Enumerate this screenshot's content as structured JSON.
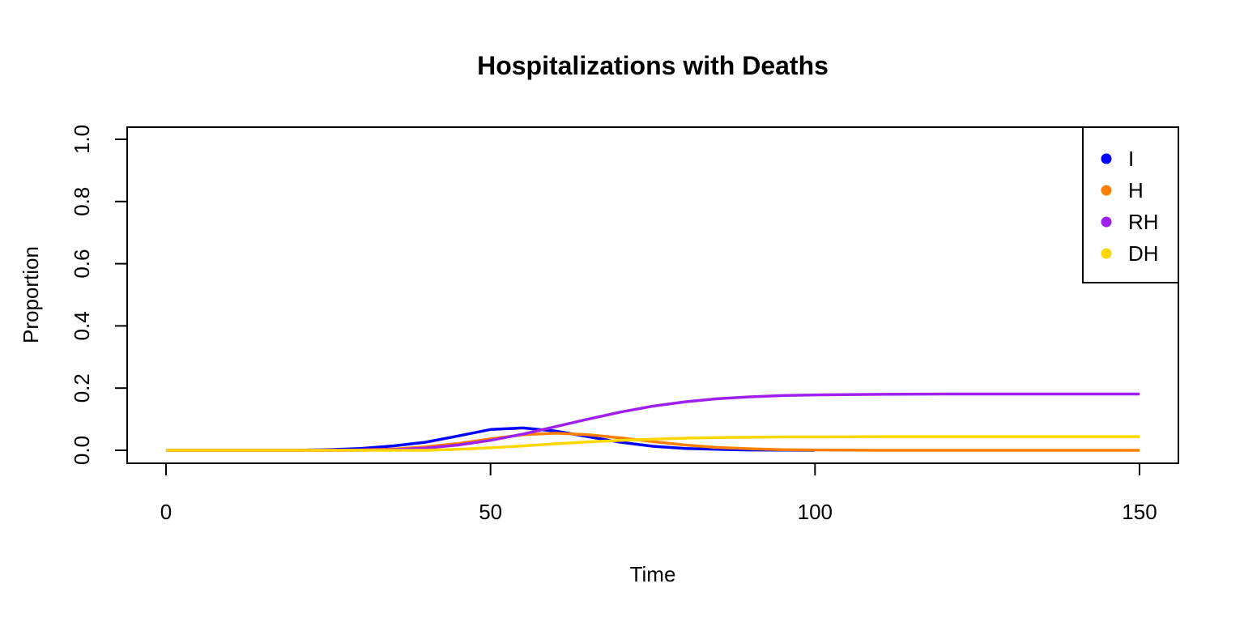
{
  "chart_data": {
    "type": "line",
    "title": "Hospitalizations with Deaths",
    "xlabel": "Time",
    "ylabel": "Proportion",
    "xlim": [
      0,
      150
    ],
    "ylim": [
      0,
      1.0
    ],
    "x_ticks": [
      0,
      50,
      100,
      150
    ],
    "x_tick_labels": [
      "0",
      "50",
      "100",
      "150"
    ],
    "y_ticks": [
      0.0,
      0.2,
      0.4,
      0.6,
      0.8,
      1.0
    ],
    "y_tick_labels": [
      "0.0",
      "0.2",
      "0.4",
      "0.6",
      "0.8",
      "1.0"
    ],
    "grid": false,
    "legend_position": "top-right",
    "series": [
      {
        "name": "I",
        "color": "#0000ff",
        "x": [
          0,
          20,
          25,
          30,
          35,
          40,
          45,
          50,
          55,
          60,
          65,
          70,
          75,
          80,
          85,
          90,
          95,
          100
        ],
        "y": [
          0,
          0,
          0.002,
          0.006,
          0.014,
          0.026,
          0.046,
          0.067,
          0.072,
          0.062,
          0.044,
          0.026,
          0.013,
          0.006,
          0.003,
          0.001,
          0.0005,
          0
        ]
      },
      {
        "name": "H",
        "color": "#ff8000",
        "x": [
          0,
          25,
          30,
          35,
          40,
          45,
          50,
          55,
          60,
          65,
          70,
          75,
          80,
          85,
          90,
          95,
          100,
          110,
          120,
          130,
          140,
          150
        ],
        "y": [
          0,
          0,
          0.001,
          0.004,
          0.011,
          0.022,
          0.037,
          0.05,
          0.055,
          0.05,
          0.04,
          0.028,
          0.017,
          0.009,
          0.005,
          0.002,
          0.001,
          0,
          0,
          0,
          0,
          0
        ]
      },
      {
        "name": "RH",
        "color": "#a020f0",
        "x": [
          0,
          30,
          35,
          40,
          45,
          50,
          55,
          60,
          65,
          70,
          75,
          80,
          85,
          90,
          95,
          100,
          110,
          120,
          130,
          140,
          150
        ],
        "y": [
          0,
          0,
          0.002,
          0.007,
          0.017,
          0.032,
          0.052,
          0.076,
          0.1,
          0.123,
          0.142,
          0.156,
          0.166,
          0.172,
          0.176,
          0.178,
          0.18,
          0.181,
          0.181,
          0.181,
          0.181
        ]
      },
      {
        "name": "DH",
        "color": "#ffd700",
        "x": [
          0,
          40,
          45,
          50,
          55,
          60,
          65,
          70,
          75,
          80,
          85,
          90,
          95,
          100,
          110,
          120,
          130,
          140,
          150
        ],
        "y": [
          0,
          0,
          0.003,
          0.008,
          0.014,
          0.021,
          0.027,
          0.032,
          0.036,
          0.039,
          0.041,
          0.042,
          0.043,
          0.043,
          0.044,
          0.044,
          0.044,
          0.044,
          0.044
        ]
      }
    ]
  }
}
